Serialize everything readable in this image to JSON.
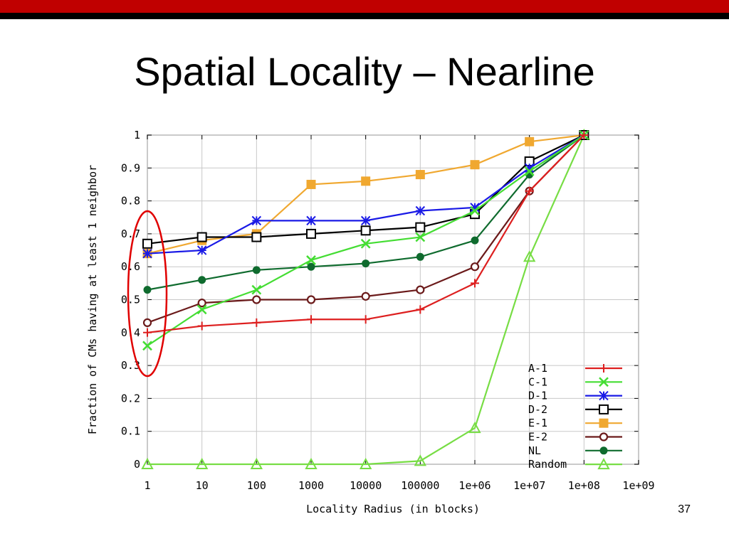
{
  "slide": {
    "title": "Spatial Locality – Nearline",
    "page_number": "37"
  },
  "colors": {
    "top_bar": "#c00000",
    "top_bar_line": "#000000",
    "highlight_ellipse": "#e00000"
  },
  "chart_data": {
    "type": "line",
    "xlabel": "Locality Radius (in blocks)",
    "ylabel": "Fraction of CMs having at least 1 neighbor",
    "x_scale": "log",
    "x": [
      1,
      10,
      100,
      1000,
      10000,
      100000,
      1000000,
      10000000,
      100000000
    ],
    "x_tick_labels": [
      "1",
      "10",
      "100",
      "1000",
      "10000",
      "100000",
      "1e+06",
      "1e+07",
      "1e+08",
      "1e+09"
    ],
    "y_tick_labels": [
      "0",
      "0.1",
      "0.2",
      "0.3",
      "0.4",
      "0.5",
      "0.6",
      "0.7",
      "0.8",
      "0.9",
      "1"
    ],
    "xlim": [
      1,
      1000000000
    ],
    "ylim": [
      0,
      1
    ],
    "grid": true,
    "legend_position": "bottom-right",
    "series": [
      {
        "name": "A-1",
        "color": "#dd1f1f",
        "marker": "plus",
        "values": [
          0.4,
          0.42,
          0.43,
          0.44,
          0.44,
          0.47,
          0.55,
          0.83,
          1.0
        ]
      },
      {
        "name": "C-1",
        "color": "#44dd33",
        "marker": "cross",
        "values": [
          0.36,
          0.47,
          0.53,
          0.62,
          0.67,
          0.69,
          0.77,
          0.89,
          1.0
        ]
      },
      {
        "name": "D-1",
        "color": "#1a1ae6",
        "marker": "star",
        "values": [
          0.64,
          0.65,
          0.74,
          0.74,
          0.74,
          0.77,
          0.78,
          0.9,
          1.0
        ]
      },
      {
        "name": "D-2",
        "color": "#000000",
        "marker": "square-open",
        "values": [
          0.67,
          0.69,
          0.69,
          0.7,
          0.71,
          0.72,
          0.76,
          0.92,
          1.0
        ]
      },
      {
        "name": "E-1",
        "color": "#f0a830",
        "marker": "square-filled",
        "values": [
          0.64,
          0.68,
          0.7,
          0.85,
          0.86,
          0.88,
          0.91,
          0.98,
          1.0
        ]
      },
      {
        "name": "E-2",
        "color": "#6b1a1a",
        "marker": "circle-open",
        "values": [
          0.43,
          0.49,
          0.5,
          0.5,
          0.51,
          0.53,
          0.6,
          0.83,
          1.0
        ]
      },
      {
        "name": "NL",
        "color": "#0f6b2e",
        "marker": "circle-filled",
        "values": [
          0.53,
          0.56,
          0.59,
          0.6,
          0.61,
          0.63,
          0.68,
          0.88,
          1.0
        ]
      },
      {
        "name": "Random",
        "color": "#77dd44",
        "marker": "triangle-open",
        "values": [
          0.0,
          0.0,
          0.0,
          0.0,
          0.0,
          0.01,
          0.11,
          0.63,
          1.0
        ]
      }
    ]
  }
}
